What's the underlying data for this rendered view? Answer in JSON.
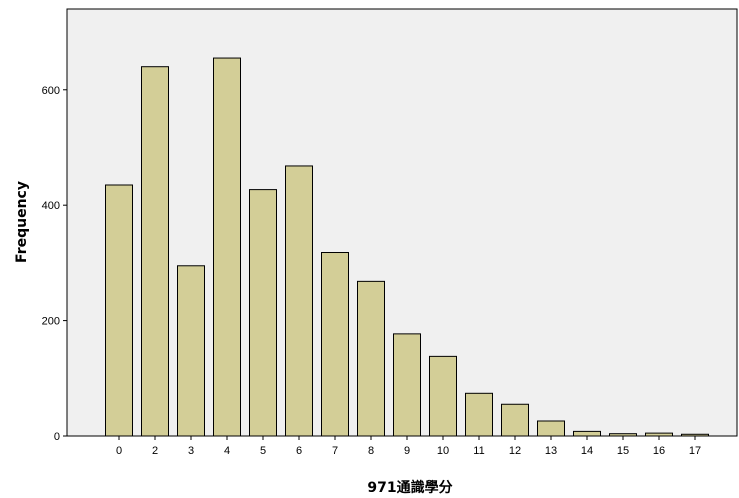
{
  "chart_data": {
    "type": "bar",
    "categories": [
      "0",
      "2",
      "3",
      "4",
      "5",
      "6",
      "7",
      "8",
      "9",
      "10",
      "11",
      "12",
      "13",
      "14",
      "15",
      "16",
      "17"
    ],
    "values": [
      435,
      640,
      295,
      655,
      427,
      468,
      318,
      268,
      177,
      138,
      74,
      55,
      26,
      8,
      4,
      5,
      3
    ],
    "xlabel": "971通識學分",
    "ylabel": "Frequency",
    "ylim": [
      0,
      740
    ],
    "yticks": [
      0,
      200,
      400,
      600
    ],
    "grid": false,
    "plot_background": "#f0f0f0",
    "bar_color": "#d3ce97"
  }
}
